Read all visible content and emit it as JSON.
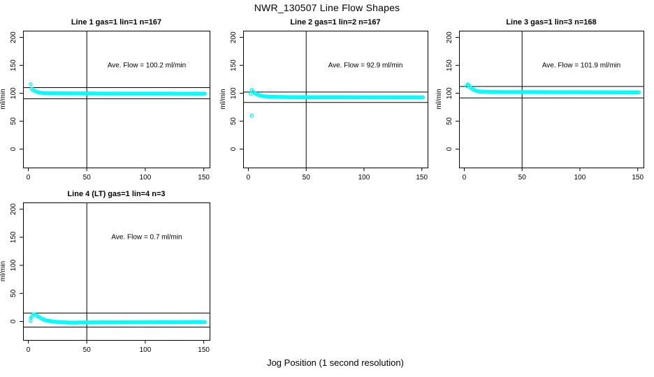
{
  "page": {
    "title": "NWR_130507  Line Flow Shapes",
    "xlabel": "Jog Position (1 second resolution)"
  },
  "chart_data": [
    {
      "type": "scatter",
      "title": "Line 1 gas=1 lin=1 n=167",
      "n": 167,
      "ave_flow_label": "Ave. Flow =  100.2  ml/min",
      "ave_flow_ml_min": 100.2,
      "ylabel": "ml/min",
      "x_ticks": [
        0,
        50,
        100,
        150
      ],
      "y_ticks": [
        0,
        50,
        100,
        150,
        200
      ],
      "xlim": [
        -4.5,
        155
      ],
      "ylim": [
        -33,
        212
      ],
      "grid": false,
      "vline_x": 50,
      "hlines": [
        110.2,
        90.2
      ],
      "point_color": "#00FFFF",
      "series_anchors": [
        [
          2,
          116
        ],
        [
          3,
          108
        ],
        [
          4,
          106
        ],
        [
          6,
          103.5
        ],
        [
          9,
          101.5
        ],
        [
          13,
          100.3
        ],
        [
          20,
          99.8
        ],
        [
          60,
          99.5
        ],
        [
          151,
          99.3
        ]
      ],
      "outliers": []
    },
    {
      "type": "scatter",
      "title": "Line 2 gas=1 lin=2 n=167",
      "n": 167,
      "ave_flow_label": "Ave. Flow =  92.9  ml/min",
      "ave_flow_ml_min": 92.9,
      "ylabel": "ml/min",
      "x_ticks": [
        0,
        50,
        100,
        150
      ],
      "y_ticks": [
        0,
        50,
        100,
        150,
        200
      ],
      "xlim": [
        -4.5,
        155
      ],
      "ylim": [
        -33,
        212
      ],
      "grid": false,
      "vline_x": 50,
      "hlines": [
        102.2,
        83.6
      ],
      "point_color": "#00FFFF",
      "series_anchors": [
        [
          2,
          99
        ],
        [
          3,
          106
        ],
        [
          4,
          103
        ],
        [
          6,
          99.5
        ],
        [
          9,
          96.5
        ],
        [
          13,
          94.8
        ],
        [
          20,
          93.6
        ],
        [
          40,
          93
        ],
        [
          151,
          92.6
        ]
      ],
      "outliers": [
        [
          3,
          60
        ]
      ]
    },
    {
      "type": "scatter",
      "title": "Line 3 gas=1 lin=3 n=168",
      "n": 168,
      "ave_flow_label": "Ave. Flow =  101.9  ml/min",
      "ave_flow_ml_min": 101.9,
      "ylabel": "ml/min",
      "x_ticks": [
        0,
        50,
        100,
        150
      ],
      "y_ticks": [
        0,
        50,
        100,
        150,
        200
      ],
      "xlim": [
        -4.5,
        155
      ],
      "ylim": [
        -33,
        212
      ],
      "grid": false,
      "vline_x": 50,
      "hlines": [
        112.1,
        91.7
      ],
      "point_color": "#00FFFF",
      "series_anchors": [
        [
          2,
          113
        ],
        [
          3,
          116
        ],
        [
          4,
          114.5
        ],
        [
          5,
          111
        ],
        [
          7,
          107.5
        ],
        [
          10,
          104.5
        ],
        [
          14,
          103
        ],
        [
          22,
          102.2
        ],
        [
          151,
          101.7
        ]
      ],
      "outliers": []
    },
    {
      "type": "scatter",
      "title": "Line 4 (LT) gas=1 lin=4 n=3",
      "n": 3,
      "ave_flow_label": "Ave. Flow =  0.7  ml/min",
      "ave_flow_ml_min": 0.7,
      "ylabel": "ml/min",
      "x_ticks": [
        0,
        50,
        100,
        150
      ],
      "y_ticks": [
        0,
        50,
        100,
        150,
        200
      ],
      "xlim": [
        -4.5,
        155
      ],
      "ylim": [
        -33,
        212
      ],
      "grid": false,
      "vline_x": 50,
      "hlines": [
        15,
        -10
      ],
      "point_color": "#00FFFF",
      "series_anchors": [
        [
          2,
          1
        ],
        [
          3,
          9
        ],
        [
          4,
          12.5
        ],
        [
          5,
          13
        ],
        [
          7,
          11
        ],
        [
          9,
          8
        ],
        [
          12,
          4.5
        ],
        [
          16,
          1.5
        ],
        [
          22,
          -0.5
        ],
        [
          35,
          -2
        ],
        [
          70,
          -1.5
        ],
        [
          151,
          -1
        ]
      ],
      "outliers": [
        [
          2,
          6
        ]
      ]
    }
  ]
}
